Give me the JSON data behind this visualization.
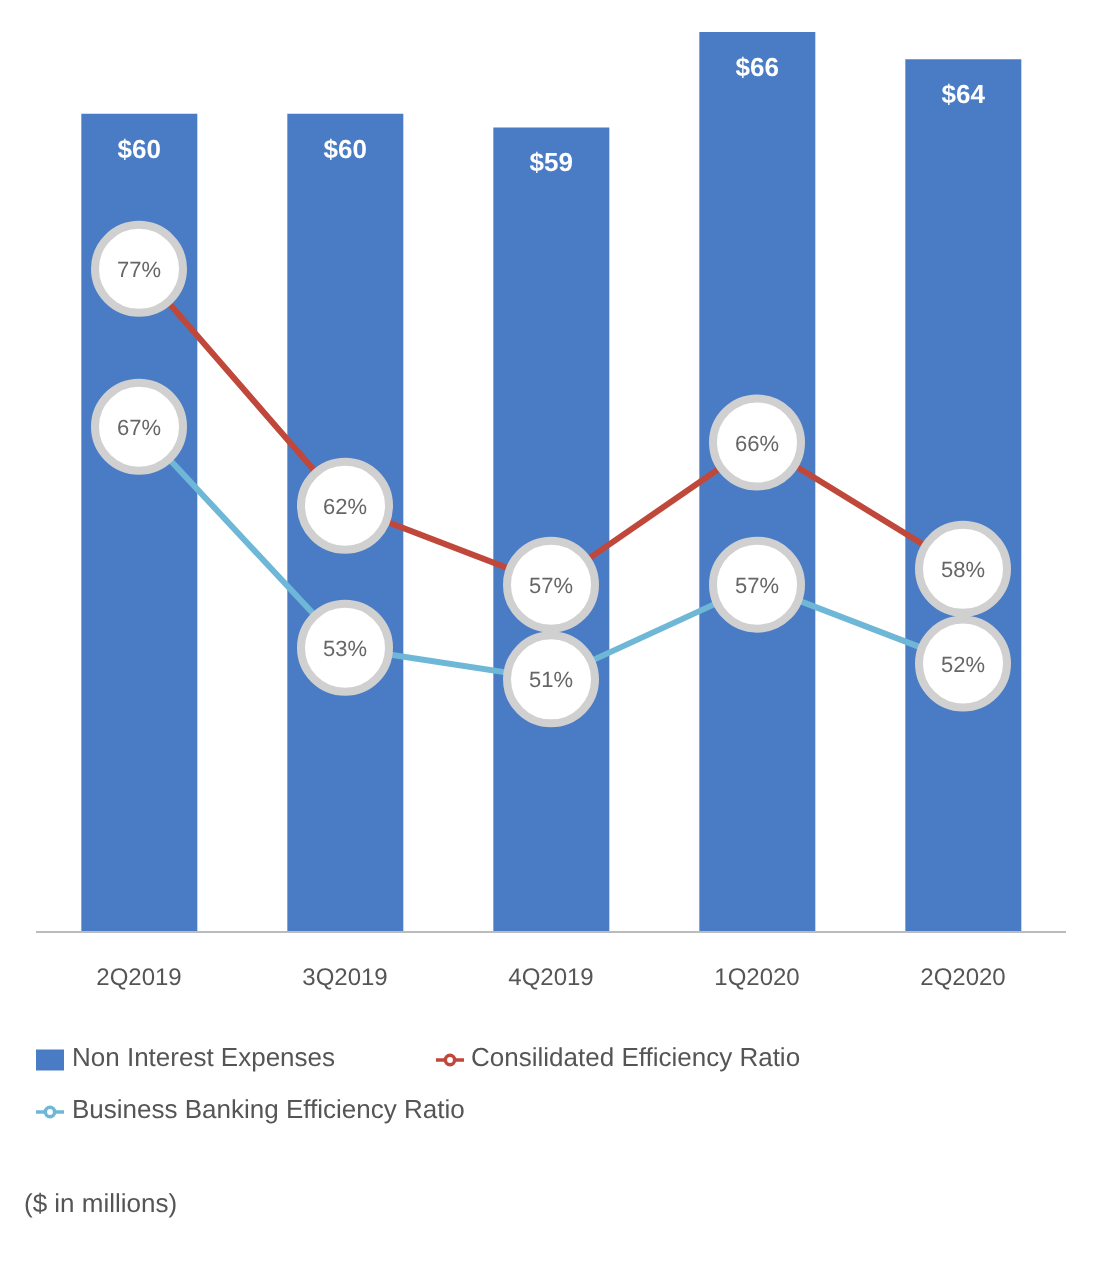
{
  "chart_data": {
    "type": "bar",
    "categories": [
      "2Q2019",
      "3Q2019",
      "4Q2019",
      "1Q2020",
      "2Q2020"
    ],
    "series": [
      {
        "name": "Non Interest Expenses",
        "color": "#4a7cc5",
        "values": [
          60,
          60,
          59,
          66,
          64
        ],
        "value_labels": [
          "$60",
          "$60",
          "$59",
          "$66",
          "$64"
        ]
      },
      {
        "name": "Consilidated Efficiency Ratio",
        "type": "line",
        "axis": "y2",
        "color": "#c0483a",
        "values": [
          77,
          62,
          57,
          66,
          58
        ],
        "value_labels": [
          "77%",
          "62%",
          "57%",
          "66%",
          "58%"
        ]
      },
      {
        "name": "Business Banking Efficiency Ratio",
        "type": "line",
        "axis": "y2",
        "color": "#6fb7d6",
        "values": [
          67,
          53,
          51,
          57,
          52
        ],
        "value_labels": [
          "67%",
          "53%",
          "51%",
          "57%",
          "52%"
        ]
      }
    ],
    "marker": "circle",
    "legend": "bottom",
    "tick_labels": "x",
    "annotations": [
      "($ in millions)"
    ]
  }
}
